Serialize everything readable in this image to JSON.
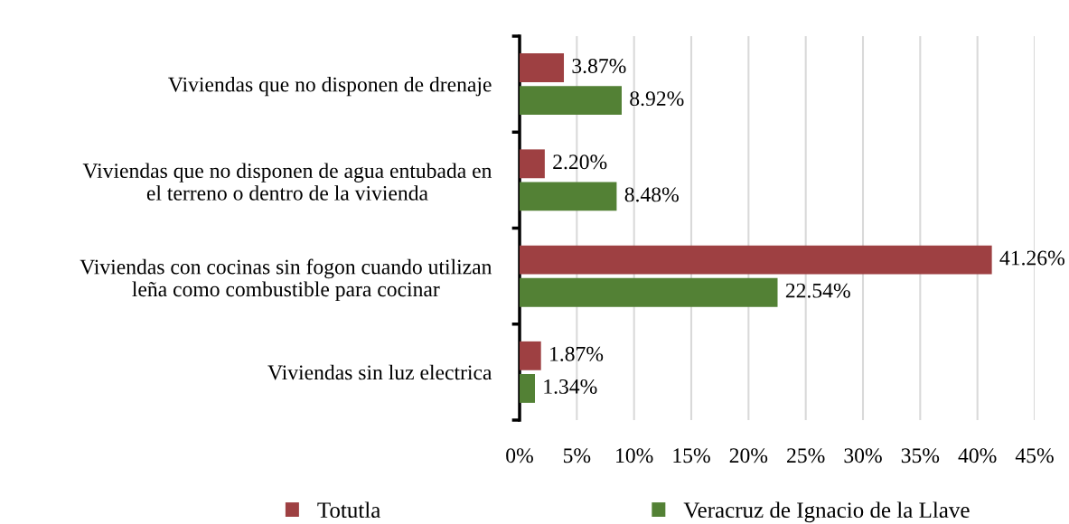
{
  "chart_data": {
    "type": "bar",
    "orientation": "horizontal",
    "categories": [
      "Viviendas que no disponen de drenaje",
      "Viviendas que no disponen de agua entubada en\nel terreno o dentro de la vivienda",
      "Viviendas con cocinas sin fogon cuando utilizan\nleña como combustible para cocinar",
      "Viviendas sin luz electrica"
    ],
    "series": [
      {
        "name": "Totutla",
        "color": "#9e4042",
        "values": [
          3.87,
          2.2,
          41.26,
          1.87
        ],
        "value_labels": [
          "3.87%",
          "2.20%",
          "41.26%",
          "1.87%"
        ]
      },
      {
        "name": "Veracruz de Ignacio de la Llave",
        "color": "#538135",
        "values": [
          8.92,
          8.48,
          22.54,
          1.34
        ],
        "value_labels": [
          "8.92%",
          "8.48%",
          "22.54%",
          "1.34%"
        ]
      }
    ],
    "xlim": [
      0,
      45
    ],
    "xticks": [
      {
        "value": 0,
        "label": "0%"
      },
      {
        "value": 5,
        "label": "5%"
      },
      {
        "value": 10,
        "label": "10%"
      },
      {
        "value": 15,
        "label": "15%"
      },
      {
        "value": 20,
        "label": "20%"
      },
      {
        "value": 25,
        "label": "25%"
      },
      {
        "value": 30,
        "label": "30%"
      },
      {
        "value": 35,
        "label": "35%"
      },
      {
        "value": 40,
        "label": "40%"
      },
      {
        "value": 45,
        "label": "45%"
      }
    ],
    "grid": "x",
    "legend": "bottom"
  }
}
